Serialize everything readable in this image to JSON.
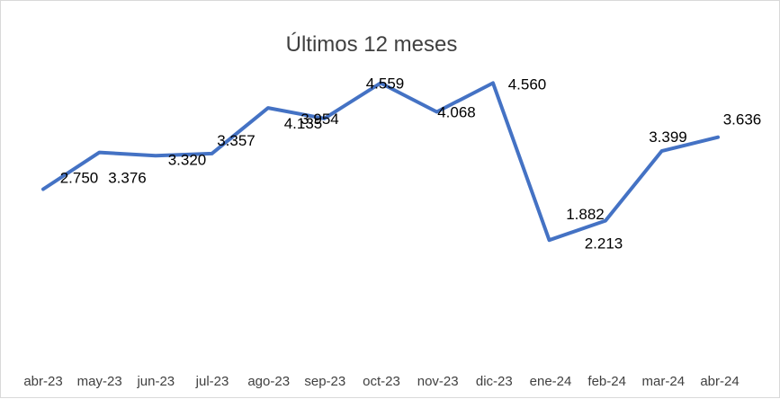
{
  "chart_data": {
    "type": "line",
    "title": "Últimos 12 meses",
    "xlabel": "",
    "ylabel": "",
    "categories": [
      "abr-23",
      "may-23",
      "jun-23",
      "jul-23",
      "ago-23",
      "sep-23",
      "oct-23",
      "nov-23",
      "dic-23",
      "ene-24",
      "feb-24",
      "mar-24",
      "abr-24"
    ],
    "series": [
      {
        "values": [
          2.75,
          3.376,
          3.32,
          3.357,
          4.135,
          3.954,
          4.559,
          4.068,
          4.56,
          1.882,
          2.213,
          3.399,
          3.636
        ],
        "color": "#4472c4"
      }
    ],
    "data_labels": [
      "2.750",
      "3.376",
      "3.320",
      "3.357",
      "4.135",
      "3.954",
      "4.559",
      "4.068",
      "4.560",
      "1.882",
      "2.213",
      "3.399",
      "3.636"
    ],
    "ylim": [
      0,
      5.5
    ],
    "grid": false,
    "legend": "none"
  }
}
